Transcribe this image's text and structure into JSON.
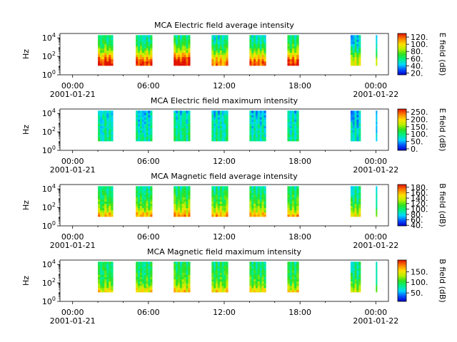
{
  "chart_data": [
    {
      "type": "heatmap",
      "title": "MCA  Electric field average intensity",
      "ylabel": "Hz",
      "y_scale": "log",
      "ylim": [
        1,
        30000
      ],
      "y_ticks": [
        {
          "base": "10",
          "exp": "0"
        },
        {
          "base": "10",
          "exp": "2"
        },
        {
          "base": "10",
          "exp": "4"
        }
      ],
      "x_ticks": [
        {
          "time": "00:00",
          "date": "2001-01-21"
        },
        {
          "time": "06:00",
          "date": ""
        },
        {
          "time": "12:00",
          "date": ""
        },
        {
          "time": "18:00",
          "date": ""
        },
        {
          "time": "00:00",
          "date": "2001-01-22"
        }
      ],
      "xlim_hours": [
        -1,
        25
      ],
      "colorbar": {
        "label": "E field (dB)",
        "min": 15,
        "max": 130,
        "ticks": [
          "20.",
          "40.",
          "60.",
          "80.",
          "100.",
          "120."
        ],
        "tick_values": [
          20,
          40,
          60,
          80,
          100,
          120
        ]
      },
      "freq_range": [
        10,
        20000
      ],
      "intensity_profile": [
        1.0,
        0.98,
        0.93,
        0.86,
        0.78,
        0.7,
        0.62,
        0.55,
        0.5,
        0.46,
        0.42,
        0.4,
        0.38,
        0.37
      ],
      "bursts": [
        {
          "start_hours": 2.0,
          "end_hours": 3.2,
          "level": 0.62
        },
        {
          "start_hours": 5.0,
          "end_hours": 6.3,
          "level": 0.58
        },
        {
          "start_hours": 8.0,
          "end_hours": 9.3,
          "level": 0.64
        },
        {
          "start_hours": 11.0,
          "end_hours": 12.3,
          "level": 0.52
        },
        {
          "start_hours": 14.0,
          "end_hours": 15.3,
          "level": 0.55
        },
        {
          "start_hours": 17.0,
          "end_hours": 17.9,
          "level": 0.6
        },
        {
          "start_hours": 22.0,
          "end_hours": 22.8,
          "level": 0.42
        },
        {
          "start_hours": 24.0,
          "end_hours": 24.1,
          "level": 0.45
        }
      ]
    },
    {
      "type": "heatmap",
      "title": "MCA  Electric field maximum intensity",
      "ylabel": "Hz",
      "y_scale": "log",
      "ylim": [
        1,
        30000
      ],
      "y_ticks": [
        {
          "base": "10",
          "exp": "0"
        },
        {
          "base": "10",
          "exp": "2"
        },
        {
          "base": "10",
          "exp": "4"
        }
      ],
      "x_ticks": [
        {
          "time": "00:00",
          "date": "2001-01-21"
        },
        {
          "time": "06:00",
          "date": ""
        },
        {
          "time": "12:00",
          "date": ""
        },
        {
          "time": "18:00",
          "date": ""
        },
        {
          "time": "00:00",
          "date": "2001-01-22"
        }
      ],
      "xlim_hours": [
        -1,
        25
      ],
      "colorbar": {
        "label": "E field (dB)",
        "min": -10,
        "max": 270,
        "ticks": [
          "0.",
          "50.",
          "100.",
          "150.",
          "200.",
          "250."
        ],
        "tick_values": [
          0,
          50,
          100,
          150,
          200,
          250
        ]
      },
      "freq_range": [
        10,
        20000
      ],
      "intensity_profile": [
        0.5,
        0.5,
        0.49,
        0.48,
        0.47,
        0.46,
        0.45,
        0.44,
        0.43,
        0.42,
        0.41,
        0.4,
        0.38,
        0.35
      ],
      "bursts": [
        {
          "start_hours": 2.0,
          "end_hours": 3.2,
          "level": 0.45
        },
        {
          "start_hours": 5.0,
          "end_hours": 6.3,
          "level": 0.43
        },
        {
          "start_hours": 8.0,
          "end_hours": 9.3,
          "level": 0.47
        },
        {
          "start_hours": 11.0,
          "end_hours": 12.3,
          "level": 0.45
        },
        {
          "start_hours": 14.0,
          "end_hours": 15.3,
          "level": 0.42
        },
        {
          "start_hours": 17.0,
          "end_hours": 17.9,
          "level": 0.45
        },
        {
          "start_hours": 22.0,
          "end_hours": 22.8,
          "level": 0.38
        },
        {
          "start_hours": 24.0,
          "end_hours": 24.1,
          "level": 0.4
        }
      ]
    },
    {
      "type": "heatmap",
      "title": "MCA  Magnetic field average intensity",
      "ylabel": "Hz",
      "y_scale": "log",
      "ylim": [
        1,
        30000
      ],
      "y_ticks": [
        {
          "base": "10",
          "exp": "0"
        },
        {
          "base": "10",
          "exp": "2"
        },
        {
          "base": "10",
          "exp": "4"
        }
      ],
      "x_ticks": [
        {
          "time": "00:00",
          "date": "2001-01-21"
        },
        {
          "time": "06:00",
          "date": ""
        },
        {
          "time": "12:00",
          "date": ""
        },
        {
          "time": "18:00",
          "date": ""
        },
        {
          "time": "00:00",
          "date": "2001-01-22"
        }
      ],
      "xlim_hours": [
        -1,
        25
      ],
      "colorbar": {
        "label": "B field (dB)",
        "min": 38,
        "max": 190,
        "ticks": [
          "40.",
          "60.",
          "80.",
          "100.",
          "120.",
          "140.",
          "160.",
          "180."
        ],
        "tick_values": [
          40,
          60,
          80,
          100,
          120,
          140,
          160,
          180
        ]
      },
      "freq_range": [
        10,
        20000
      ],
      "intensity_profile": [
        0.88,
        0.82,
        0.74,
        0.67,
        0.62,
        0.58,
        0.55,
        0.52,
        0.5,
        0.48,
        0.46,
        0.44,
        0.42,
        0.4
      ],
      "bursts": [
        {
          "start_hours": 2.0,
          "end_hours": 3.2,
          "level": 0.55
        },
        {
          "start_hours": 5.0,
          "end_hours": 6.3,
          "level": 0.55
        },
        {
          "start_hours": 8.0,
          "end_hours": 9.3,
          "level": 0.58
        },
        {
          "start_hours": 11.0,
          "end_hours": 12.3,
          "level": 0.56
        },
        {
          "start_hours": 14.0,
          "end_hours": 15.3,
          "level": 0.55
        },
        {
          "start_hours": 17.0,
          "end_hours": 17.9,
          "level": 0.55
        },
        {
          "start_hours": 22.0,
          "end_hours": 22.8,
          "level": 0.5
        },
        {
          "start_hours": 24.0,
          "end_hours": 24.1,
          "level": 0.45
        }
      ]
    },
    {
      "type": "heatmap",
      "title": "MCA  Magnetic field maximum intensity",
      "ylabel": "Hz",
      "y_scale": "log",
      "ylim": [
        1,
        30000
      ],
      "y_ticks": [
        {
          "base": "10",
          "exp": "0"
        },
        {
          "base": "10",
          "exp": "2"
        },
        {
          "base": "10",
          "exp": "4"
        }
      ],
      "x_ticks": [
        {
          "time": "00:00",
          "date": "2001-01-21"
        },
        {
          "time": "06:00",
          "date": ""
        },
        {
          "time": "12:00",
          "date": ""
        },
        {
          "time": "18:00",
          "date": ""
        },
        {
          "time": "00:00",
          "date": "2001-01-22"
        }
      ],
      "xlim_hours": [
        -1,
        25
      ],
      "colorbar": {
        "label": "B field (dB)",
        "min": 10,
        "max": 205,
        "ticks": [
          "50.",
          "100.",
          "150."
        ],
        "tick_values": [
          50,
          100,
          150
        ]
      },
      "freq_range": [
        10,
        20000
      ],
      "intensity_profile": [
        0.85,
        0.78,
        0.7,
        0.64,
        0.6,
        0.57,
        0.55,
        0.53,
        0.51,
        0.5,
        0.49,
        0.48,
        0.47,
        0.46
      ],
      "bursts": [
        {
          "start_hours": 2.0,
          "end_hours": 3.2,
          "level": 0.52
        },
        {
          "start_hours": 5.0,
          "end_hours": 6.3,
          "level": 0.52
        },
        {
          "start_hours": 8.0,
          "end_hours": 9.3,
          "level": 0.55
        },
        {
          "start_hours": 11.0,
          "end_hours": 12.3,
          "level": 0.53
        },
        {
          "start_hours": 14.0,
          "end_hours": 15.3,
          "level": 0.52
        },
        {
          "start_hours": 17.0,
          "end_hours": 17.9,
          "level": 0.52
        },
        {
          "start_hours": 22.0,
          "end_hours": 22.8,
          "level": 0.48
        },
        {
          "start_hours": 24.0,
          "end_hours": 24.1,
          "level": 0.45
        }
      ]
    }
  ]
}
